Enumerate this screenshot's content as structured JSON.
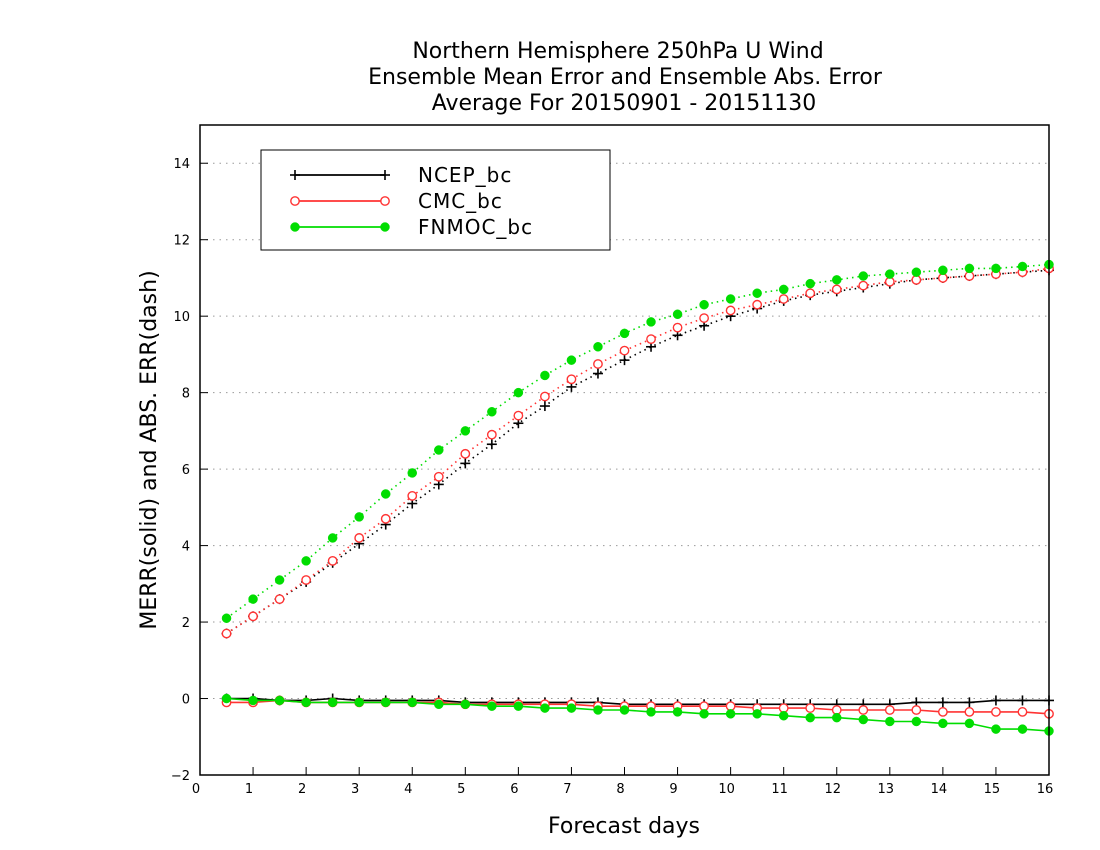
{
  "chart_data": {
    "type": "line",
    "title_lines": [
      "Northern Hemisphere 250hPa U Wind",
      "Ensemble Mean Error and Ensemble Abs. Error",
      "Average For 20150901 - 20151130"
    ],
    "xlabel": "Forecast days",
    "ylabel": "MERR(solid) and ABS. ERR(dash)",
    "xlim": [
      0,
      16
    ],
    "ylim": [
      -2,
      15
    ],
    "x_ticks": [
      0,
      1,
      2,
      3,
      4,
      5,
      6,
      7,
      8,
      9,
      10,
      11,
      12,
      13,
      14,
      15,
      16
    ],
    "y_ticks": [
      -2,
      0,
      2,
      4,
      6,
      8,
      10,
      12,
      14
    ],
    "grid": "horizontal dotted",
    "legend_position": "top-left",
    "x": [
      0.5,
      1,
      1.5,
      2,
      2.5,
      3,
      3.5,
      4,
      4.5,
      5,
      5.5,
      6,
      6.5,
      7,
      7.5,
      8,
      8.5,
      9,
      9.5,
      10,
      10.5,
      11,
      11.5,
      12,
      12.5,
      13,
      13.5,
      14,
      14.5,
      15,
      15.5,
      16
    ],
    "series": [
      {
        "name": "NCEP_bc",
        "color": "#000000",
        "marker": "plus",
        "abs_err": [
          1.7,
          2.15,
          2.6,
          3.05,
          3.55,
          4.05,
          4.55,
          5.1,
          5.6,
          6.15,
          6.65,
          7.2,
          7.65,
          8.15,
          8.5,
          8.85,
          9.2,
          9.5,
          9.75,
          10.0,
          10.2,
          10.4,
          10.55,
          10.65,
          10.75,
          10.85,
          10.95,
          11.0,
          11.05,
          11.1,
          11.15,
          11.2
        ],
        "mean_err": [
          0.0,
          0.0,
          -0.05,
          -0.05,
          0.0,
          -0.05,
          -0.05,
          -0.05,
          -0.05,
          -0.1,
          -0.1,
          -0.1,
          -0.1,
          -0.1,
          -0.1,
          -0.15,
          -0.15,
          -0.15,
          -0.15,
          -0.15,
          -0.15,
          -0.15,
          -0.15,
          -0.15,
          -0.15,
          -0.15,
          -0.1,
          -0.1,
          -0.1,
          -0.05,
          -0.05,
          -0.05
        ]
      },
      {
        "name": "CMC_bc",
        "color": "#ff3333",
        "marker": "open-circle",
        "abs_err": [
          1.7,
          2.15,
          2.6,
          3.1,
          3.6,
          4.2,
          4.7,
          5.3,
          5.8,
          6.4,
          6.9,
          7.4,
          7.9,
          8.35,
          8.75,
          9.1,
          9.4,
          9.7,
          9.95,
          10.15,
          10.3,
          10.45,
          10.6,
          10.7,
          10.8,
          10.9,
          10.95,
          11.0,
          11.05,
          11.1,
          11.15,
          11.25
        ],
        "mean_err": [
          -0.1,
          -0.1,
          -0.05,
          -0.1,
          -0.1,
          -0.1,
          -0.1,
          -0.1,
          -0.1,
          -0.15,
          -0.15,
          -0.15,
          -0.15,
          -0.15,
          -0.2,
          -0.2,
          -0.2,
          -0.2,
          -0.2,
          -0.2,
          -0.25,
          -0.25,
          -0.25,
          -0.3,
          -0.3,
          -0.3,
          -0.3,
          -0.35,
          -0.35,
          -0.35,
          -0.35,
          -0.4
        ]
      },
      {
        "name": "FNMOC_bc",
        "color": "#00dd00",
        "marker": "filled-circle",
        "abs_err": [
          2.1,
          2.6,
          3.1,
          3.6,
          4.2,
          4.75,
          5.35,
          5.9,
          6.5,
          7.0,
          7.5,
          8.0,
          8.45,
          8.85,
          9.2,
          9.55,
          9.85,
          10.05,
          10.3,
          10.45,
          10.6,
          10.7,
          10.85,
          10.95,
          11.05,
          11.1,
          11.15,
          11.2,
          11.25,
          11.25,
          11.3,
          11.35
        ],
        "mean_err": [
          0.0,
          -0.05,
          -0.05,
          -0.1,
          -0.1,
          -0.1,
          -0.1,
          -0.1,
          -0.15,
          -0.15,
          -0.2,
          -0.2,
          -0.25,
          -0.25,
          -0.3,
          -0.3,
          -0.35,
          -0.35,
          -0.4,
          -0.4,
          -0.4,
          -0.45,
          -0.5,
          -0.5,
          -0.55,
          -0.6,
          -0.6,
          -0.65,
          -0.65,
          -0.8,
          -0.8,
          -0.85
        ]
      }
    ]
  }
}
